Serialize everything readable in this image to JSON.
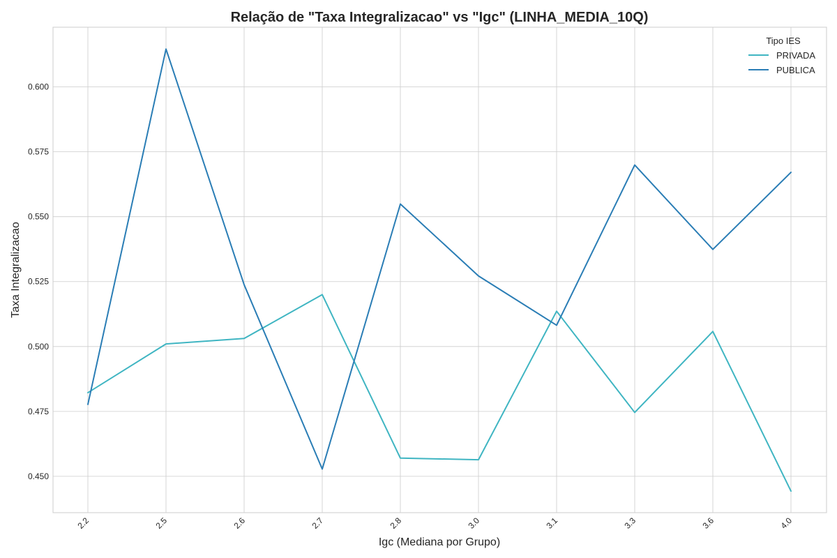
{
  "chart_data": {
    "type": "line",
    "title": "Relação de \"Taxa Integralizacao\" vs \"Igc\" (LINHA_MEDIA_10Q)",
    "xlabel": "Igc (Mediana por Grupo)",
    "ylabel": "Taxa Integralizacao",
    "categories": [
      "2.2",
      "2.5",
      "2.6",
      "2.7",
      "2.8",
      "3.0",
      "3.1",
      "3.3",
      "3.6",
      "4.0"
    ],
    "yticks": [
      "0.450",
      "0.475",
      "0.500",
      "0.525",
      "0.550",
      "0.575",
      "0.600"
    ],
    "ylim": [
      0.436,
      0.623
    ],
    "grid": true,
    "legend": {
      "title": "Tipo IES",
      "position": "top-right"
    },
    "series": [
      {
        "name": "PRIVADA",
        "color": "#3fb5c2",
        "values": [
          0.4822,
          0.501,
          0.5031,
          0.52,
          0.457,
          0.4564,
          0.5136,
          0.4746,
          0.5058,
          0.4443
        ]
      },
      {
        "name": "PUBLICA",
        "color": "#2a7db5",
        "values": [
          0.4777,
          0.6146,
          0.5238,
          0.4528,
          0.5549,
          0.5272,
          0.5082,
          0.5699,
          0.5374,
          0.5671
        ]
      }
    ]
  }
}
